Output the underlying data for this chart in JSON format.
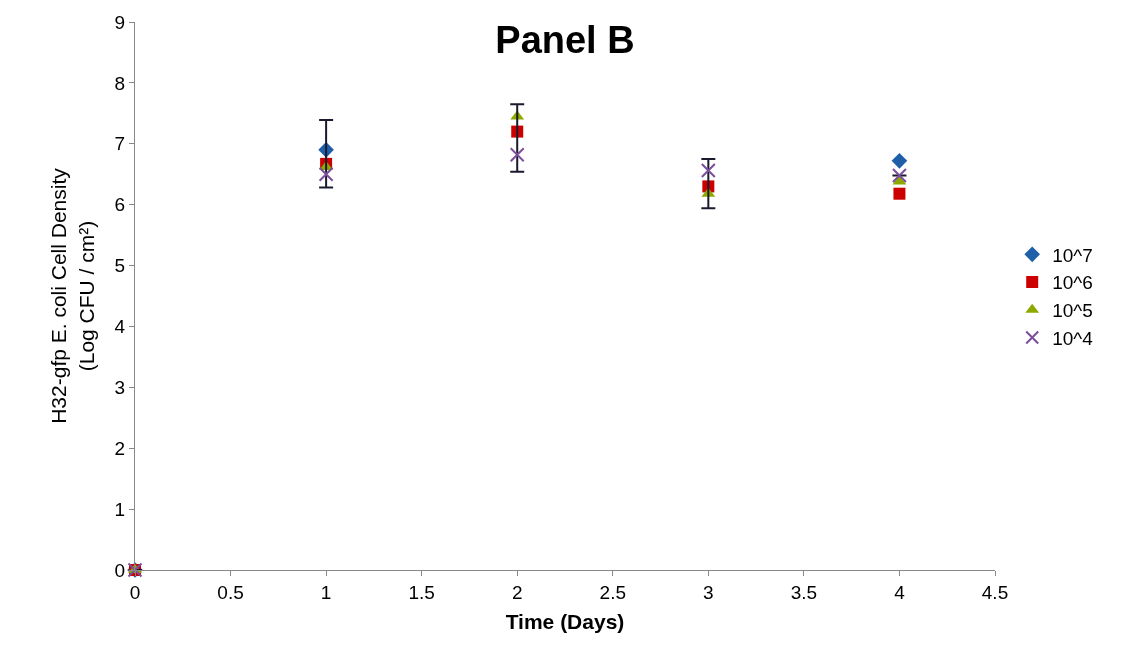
{
  "chart_data": {
    "type": "scatter",
    "title": "Panel B",
    "xlabel": "Time (Days)",
    "ylabel": "H32-gfp E. coli Cell Density\n(Log CFU / cm²)",
    "x": [
      0,
      1,
      2,
      3,
      4
    ],
    "series": [
      {
        "name": "10^7",
        "color": "#1f5fa8",
        "marker": "diamond",
        "values": [
          0,
          6.9,
          null,
          null,
          6.72
        ]
      },
      {
        "name": "10^6",
        "color": "#cc0000",
        "marker": "square",
        "values": [
          0,
          6.67,
          7.2,
          6.3,
          6.18
        ]
      },
      {
        "name": "10^5",
        "color": "#8fa800",
        "marker": "triangle",
        "values": [
          0,
          6.62,
          7.45,
          6.18,
          6.38
        ]
      },
      {
        "name": "10^4",
        "color": "#7b4f9a",
        "marker": "cross",
        "values": [
          0,
          6.5,
          6.82,
          6.56,
          6.48
        ],
        "errors": [
          null,
          [
            6.28,
            7.39
          ],
          [
            6.54,
            7.65
          ],
          [
            5.94,
            6.75
          ],
          null
        ]
      }
    ],
    "xlim": [
      0,
      4.5
    ],
    "xticks": [
      0,
      0.5,
      1,
      1.5,
      2,
      2.5,
      3,
      3.5,
      4,
      4.5
    ],
    "ylim": [
      0,
      9
    ],
    "yticks": [
      0,
      1,
      2,
      3,
      4,
      5,
      6,
      7,
      8,
      9
    ],
    "grid": false,
    "legend": "right"
  }
}
